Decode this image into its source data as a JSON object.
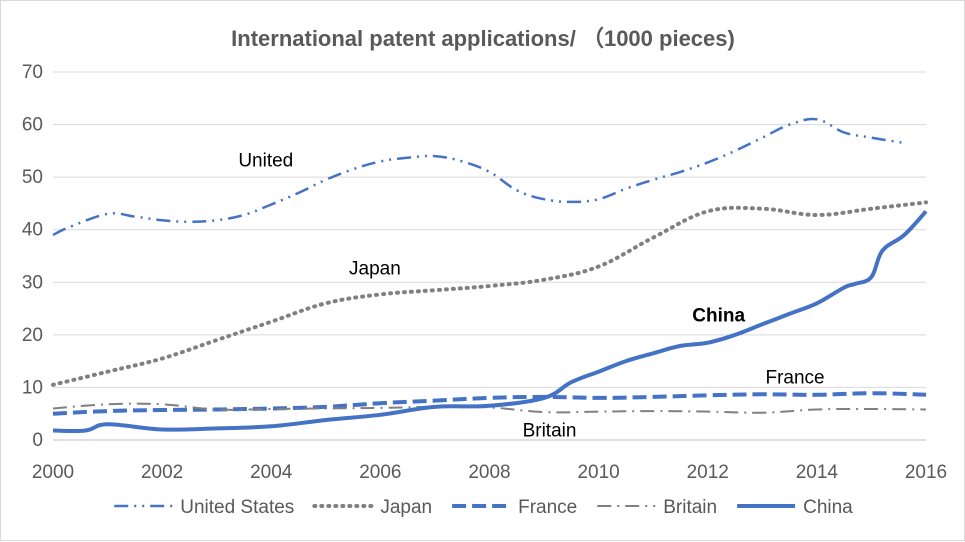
{
  "chart_data": {
    "type": "line",
    "title": "International patent applications/ （1000  pieces)",
    "xlabel": "",
    "ylabel": "",
    "xlim": [
      2000,
      2016
    ],
    "ylim": [
      0,
      70
    ],
    "x_ticks": [
      "2000",
      "2002",
      "2004",
      "2006",
      "2008",
      "2010",
      "2012",
      "2014",
      "2016"
    ],
    "y_ticks": [
      "0",
      "10",
      "20",
      "30",
      "40",
      "50",
      "60",
      "70"
    ],
    "grid": "horizontal",
    "legend_position": "bottom",
    "annotations": [
      {
        "text": "United",
        "x": 2003.9,
        "y": 52,
        "bold": false
      },
      {
        "text": "Japan",
        "x": 2005.9,
        "y": 31.5,
        "bold": false
      },
      {
        "text": "China",
        "x": 2012.2,
        "y": 22.5,
        "bold": true
      },
      {
        "text": "France",
        "x": 2013.6,
        "y": 10.7,
        "bold": false
      },
      {
        "text": "Britain",
        "x": 2009.1,
        "y": 0.7,
        "bold": false
      }
    ],
    "series": [
      {
        "name": "United States",
        "color": "#4472c4",
        "dash": "dashdotdot",
        "points": [
          [
            2000,
            39
          ],
          [
            2000.3,
            40.5
          ],
          [
            2001,
            43
          ],
          [
            2001.5,
            42.5
          ],
          [
            2002,
            41.8
          ],
          [
            2002.5,
            41.5
          ],
          [
            2003,
            41.8
          ],
          [
            2003.5,
            42.8
          ],
          [
            2004,
            44.8
          ],
          [
            2004.5,
            47
          ],
          [
            2005,
            49.5
          ],
          [
            2005.5,
            51.5
          ],
          [
            2006,
            53
          ],
          [
            2006.5,
            53.7
          ],
          [
            2007,
            54
          ],
          [
            2007.5,
            53
          ],
          [
            2008,
            51
          ],
          [
            2008.5,
            47.5
          ],
          [
            2009,
            45.8
          ],
          [
            2009.5,
            45.3
          ],
          [
            2010,
            45.8
          ],
          [
            2010.5,
            47.8
          ],
          [
            2011,
            49.5
          ],
          [
            2011.5,
            51
          ],
          [
            2012,
            52.8
          ],
          [
            2012.5,
            55
          ],
          [
            2013,
            57.5
          ],
          [
            2013.5,
            60
          ],
          [
            2014,
            61
          ],
          [
            2014.5,
            58.5
          ],
          [
            2015,
            57.5
          ],
          [
            2015.6,
            56.5
          ]
        ]
      },
      {
        "name": "Japan",
        "color": "#808080",
        "dash": "dot",
        "points": [
          [
            2000,
            10.5
          ],
          [
            2001,
            13
          ],
          [
            2002,
            15.5
          ],
          [
            2003,
            19
          ],
          [
            2004,
            22.5
          ],
          [
            2005,
            26
          ],
          [
            2006,
            27.7
          ],
          [
            2007,
            28.5
          ],
          [
            2008,
            29.3
          ],
          [
            2009,
            30.5
          ],
          [
            2010,
            33
          ],
          [
            2011,
            38.5
          ],
          [
            2012,
            43.5
          ],
          [
            2013,
            44
          ],
          [
            2014,
            42.8
          ],
          [
            2015,
            44
          ],
          [
            2016,
            45.2
          ]
        ]
      },
      {
        "name": "France",
        "color": "#4472c4",
        "dash": "dash",
        "points": [
          [
            2000,
            5
          ],
          [
            2001,
            5.5
          ],
          [
            2002,
            5.7
          ],
          [
            2003,
            5.8
          ],
          [
            2004,
            6
          ],
          [
            2005,
            6.3
          ],
          [
            2006,
            7
          ],
          [
            2007,
            7.5
          ],
          [
            2008,
            8
          ],
          [
            2009,
            8.2
          ],
          [
            2010,
            8
          ],
          [
            2011,
            8.2
          ],
          [
            2012,
            8.5
          ],
          [
            2013,
            8.7
          ],
          [
            2014,
            8.6
          ],
          [
            2015,
            8.9
          ],
          [
            2016,
            8.6
          ]
        ]
      },
      {
        "name": "Britain",
        "color": "#808080",
        "dash": "dashdot",
        "points": [
          [
            2000,
            6
          ],
          [
            2001,
            6.8
          ],
          [
            2002,
            6.8
          ],
          [
            2003,
            5.8
          ],
          [
            2004,
            5.9
          ],
          [
            2005,
            6
          ],
          [
            2006,
            6.1
          ],
          [
            2007,
            6.3
          ],
          [
            2008,
            6.2
          ],
          [
            2009,
            5.3
          ],
          [
            2010,
            5.4
          ],
          [
            2011,
            5.5
          ],
          [
            2012,
            5.4
          ],
          [
            2013,
            5.2
          ],
          [
            2014,
            5.8
          ],
          [
            2015,
            5.9
          ],
          [
            2016,
            5.8
          ]
        ]
      },
      {
        "name": "China",
        "color": "#4472c4",
        "dash": "solid",
        "points": [
          [
            2000,
            1.8
          ],
          [
            2000.6,
            1.8
          ],
          [
            2001,
            3
          ],
          [
            2002,
            2
          ],
          [
            2003,
            2.2
          ],
          [
            2004,
            2.6
          ],
          [
            2005,
            3.8
          ],
          [
            2006,
            4.8
          ],
          [
            2007,
            6.3
          ],
          [
            2008,
            6.5
          ],
          [
            2009,
            8
          ],
          [
            2009.5,
            11
          ],
          [
            2010,
            13
          ],
          [
            2010.5,
            15
          ],
          [
            2011,
            16.5
          ],
          [
            2011.5,
            17.9
          ],
          [
            2012,
            18.5
          ],
          [
            2012.5,
            20
          ],
          [
            2013,
            22
          ],
          [
            2013.5,
            24
          ],
          [
            2014,
            26
          ],
          [
            2014.5,
            29
          ],
          [
            2014.7,
            29.7
          ],
          [
            2015,
            31
          ],
          [
            2015.2,
            36
          ],
          [
            2015.6,
            39
          ],
          [
            2016,
            43.5
          ]
        ]
      }
    ]
  }
}
